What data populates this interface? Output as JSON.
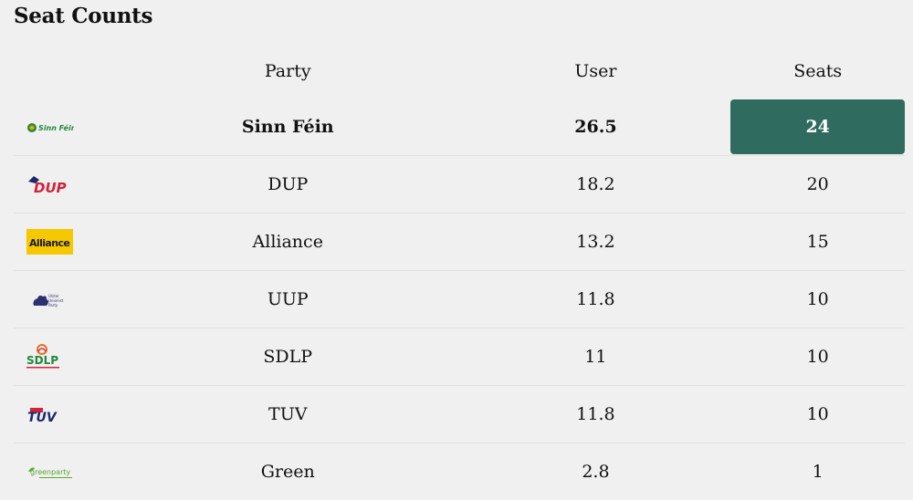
{
  "title": "Seat Counts",
  "columns": {
    "party": "Party",
    "user": "User",
    "seats": "Seats"
  },
  "rows": [
    {
      "logo": "sinn-fein-logo",
      "logo_text": "Sinn Féin",
      "party": "Sinn Féin",
      "user": "26.5",
      "seats": "24",
      "highlight": true
    },
    {
      "logo": "dup-logo",
      "logo_text": "DUP",
      "party": "DUP",
      "user": "18.2",
      "seats": "20"
    },
    {
      "logo": "alliance-logo",
      "logo_text": "Alliance",
      "party": "Alliance",
      "user": "13.2",
      "seats": "15"
    },
    {
      "logo": "uup-logo",
      "logo_text": "Ulster Unionist Party",
      "party": "UUP",
      "user": "11.8",
      "seats": "10"
    },
    {
      "logo": "sdlp-logo",
      "logo_text": "SDLP",
      "party": "SDLP",
      "user": "11",
      "seats": "10"
    },
    {
      "logo": "tuv-logo",
      "logo_text": "TUV",
      "party": "TUV",
      "user": "11.8",
      "seats": "10"
    },
    {
      "logo": "green-party-logo",
      "logo_text": "greenparty",
      "party": "Green",
      "user": "2.8",
      "seats": "1"
    }
  ],
  "colors": {
    "highlight": "#2f6b5e",
    "background": "#f0f0f0"
  }
}
